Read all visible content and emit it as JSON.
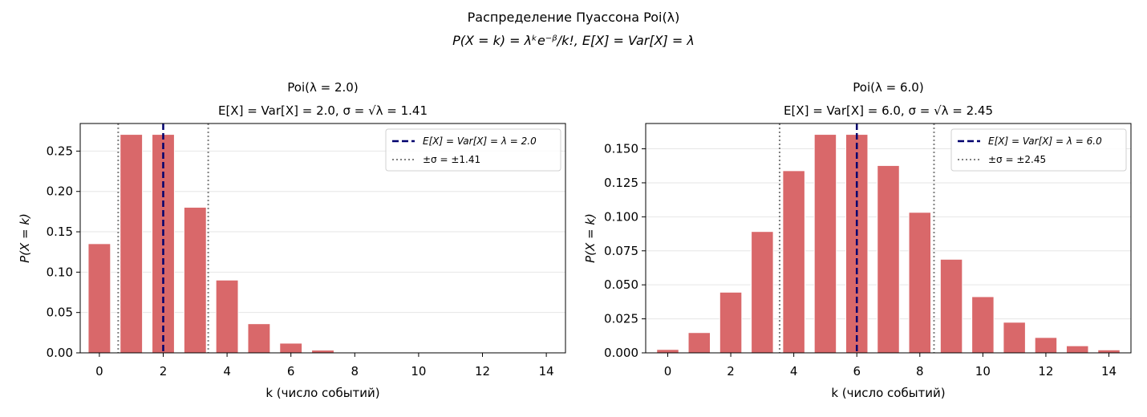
{
  "suptitle": {
    "line1": "Распределение Пуассона Poi(λ)",
    "line2": "P(X = k) = λᵏe⁻ᵝ/k!,  E[X] = Var[X] = λ"
  },
  "colors": {
    "bar": "#d9686a",
    "mean_line": "#00006e",
    "sigma_line": "#808080",
    "grid": "#e6e6e6"
  },
  "chart_data": [
    {
      "type": "bar",
      "title_line1": "Poi(λ = 2.0)",
      "title_line2": "E[X] = Var[X] = 2.0,  σ = √λ = 1.41",
      "xlabel": "k (число событий)",
      "ylabel": "P(X = k)",
      "lambda": 2.0,
      "sigma": 1.41,
      "categories": [
        0,
        1,
        2,
        3,
        4,
        5,
        6,
        7,
        8,
        9,
        10,
        11,
        12,
        13,
        14
      ],
      "values": [
        0.1353,
        0.2707,
        0.2707,
        0.1804,
        0.0902,
        0.0361,
        0.012,
        0.0034,
        0.0009,
        0.0002,
        4e-05,
        1e-05,
        0.0,
        0.0,
        0.0
      ],
      "xlim": [
        -0.6,
        14.6
      ],
      "ylim": [
        0,
        0.2842
      ],
      "xticks": [
        0,
        2,
        4,
        6,
        8,
        10,
        12,
        14
      ],
      "yticks": [
        0.0,
        0.05,
        0.1,
        0.15,
        0.2,
        0.25
      ],
      "ytick_labels": [
        "0.00",
        "0.05",
        "0.10",
        "0.15",
        "0.20",
        "0.25"
      ],
      "grid": "y",
      "legend": {
        "position": "top-right",
        "entries": [
          "E[X] = Var[X] = λ = 2.0",
          "±σ = ±1.41"
        ]
      }
    },
    {
      "type": "bar",
      "title_line1": "Poi(λ = 6.0)",
      "title_line2": "E[X] = Var[X] = 6.0,  σ = √λ = 2.45",
      "xlabel": "k (число событий)",
      "ylabel": "P(X = k)",
      "lambda": 6.0,
      "sigma": 2.45,
      "categories": [
        0,
        1,
        2,
        3,
        4,
        5,
        6,
        7,
        8,
        9,
        10,
        11,
        12,
        13,
        14
      ],
      "values": [
        0.0025,
        0.0149,
        0.0446,
        0.0892,
        0.1339,
        0.1606,
        0.1606,
        0.1377,
        0.1033,
        0.0688,
        0.0413,
        0.0225,
        0.0113,
        0.0052,
        0.0022
      ],
      "xlim": [
        -0.7,
        14.7
      ],
      "ylim": [
        0,
        0.1686
      ],
      "xticks": [
        0,
        2,
        4,
        6,
        8,
        10,
        12,
        14
      ],
      "yticks": [
        0.0,
        0.025,
        0.05,
        0.075,
        0.1,
        0.125,
        0.15
      ],
      "ytick_labels": [
        "0.000",
        "0.025",
        "0.050",
        "0.075",
        "0.100",
        "0.125",
        "0.150"
      ],
      "grid": "y",
      "legend": {
        "position": "top-right",
        "entries": [
          "E[X] = Var[X] = λ = 6.0",
          "±σ = ±2.45"
        ]
      }
    }
  ]
}
